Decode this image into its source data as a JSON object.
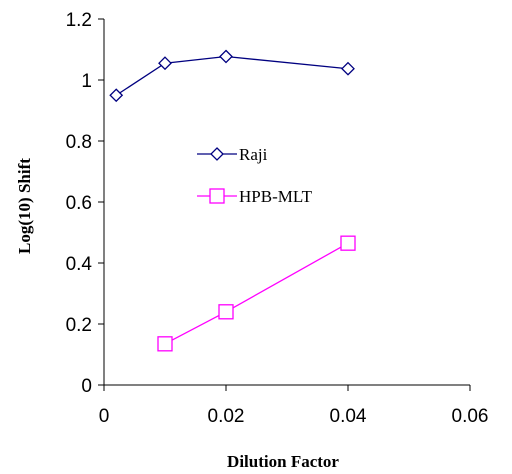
{
  "chart_data": {
    "type": "line",
    "title": "",
    "xlabel": "Dilution Factor",
    "ylabel": "Log(10) Shift",
    "xlim": [
      0,
      0.06
    ],
    "ylim": [
      0,
      1.2
    ],
    "x_ticks": [
      "0",
      "0.02",
      "0.04",
      "0.06"
    ],
    "y_ticks": [
      "0",
      "0.2",
      "0.4",
      "0.6",
      "0.8",
      "1",
      "1.2"
    ],
    "grid": false,
    "legend_position": "center",
    "series": [
      {
        "name": "Raji",
        "color": "#000080",
        "marker": "diamond",
        "points": [
          [
            0.002,
            0.95
          ],
          [
            0.01,
            1.055
          ],
          [
            0.02,
            1.077
          ],
          [
            0.04,
            1.037
          ]
        ]
      },
      {
        "name": "HPB-MLT",
        "color": "#ff00ff",
        "marker": "square",
        "points": [
          [
            0.01,
            0.135
          ],
          [
            0.02,
            0.24
          ],
          [
            0.04,
            0.465
          ]
        ]
      }
    ]
  }
}
